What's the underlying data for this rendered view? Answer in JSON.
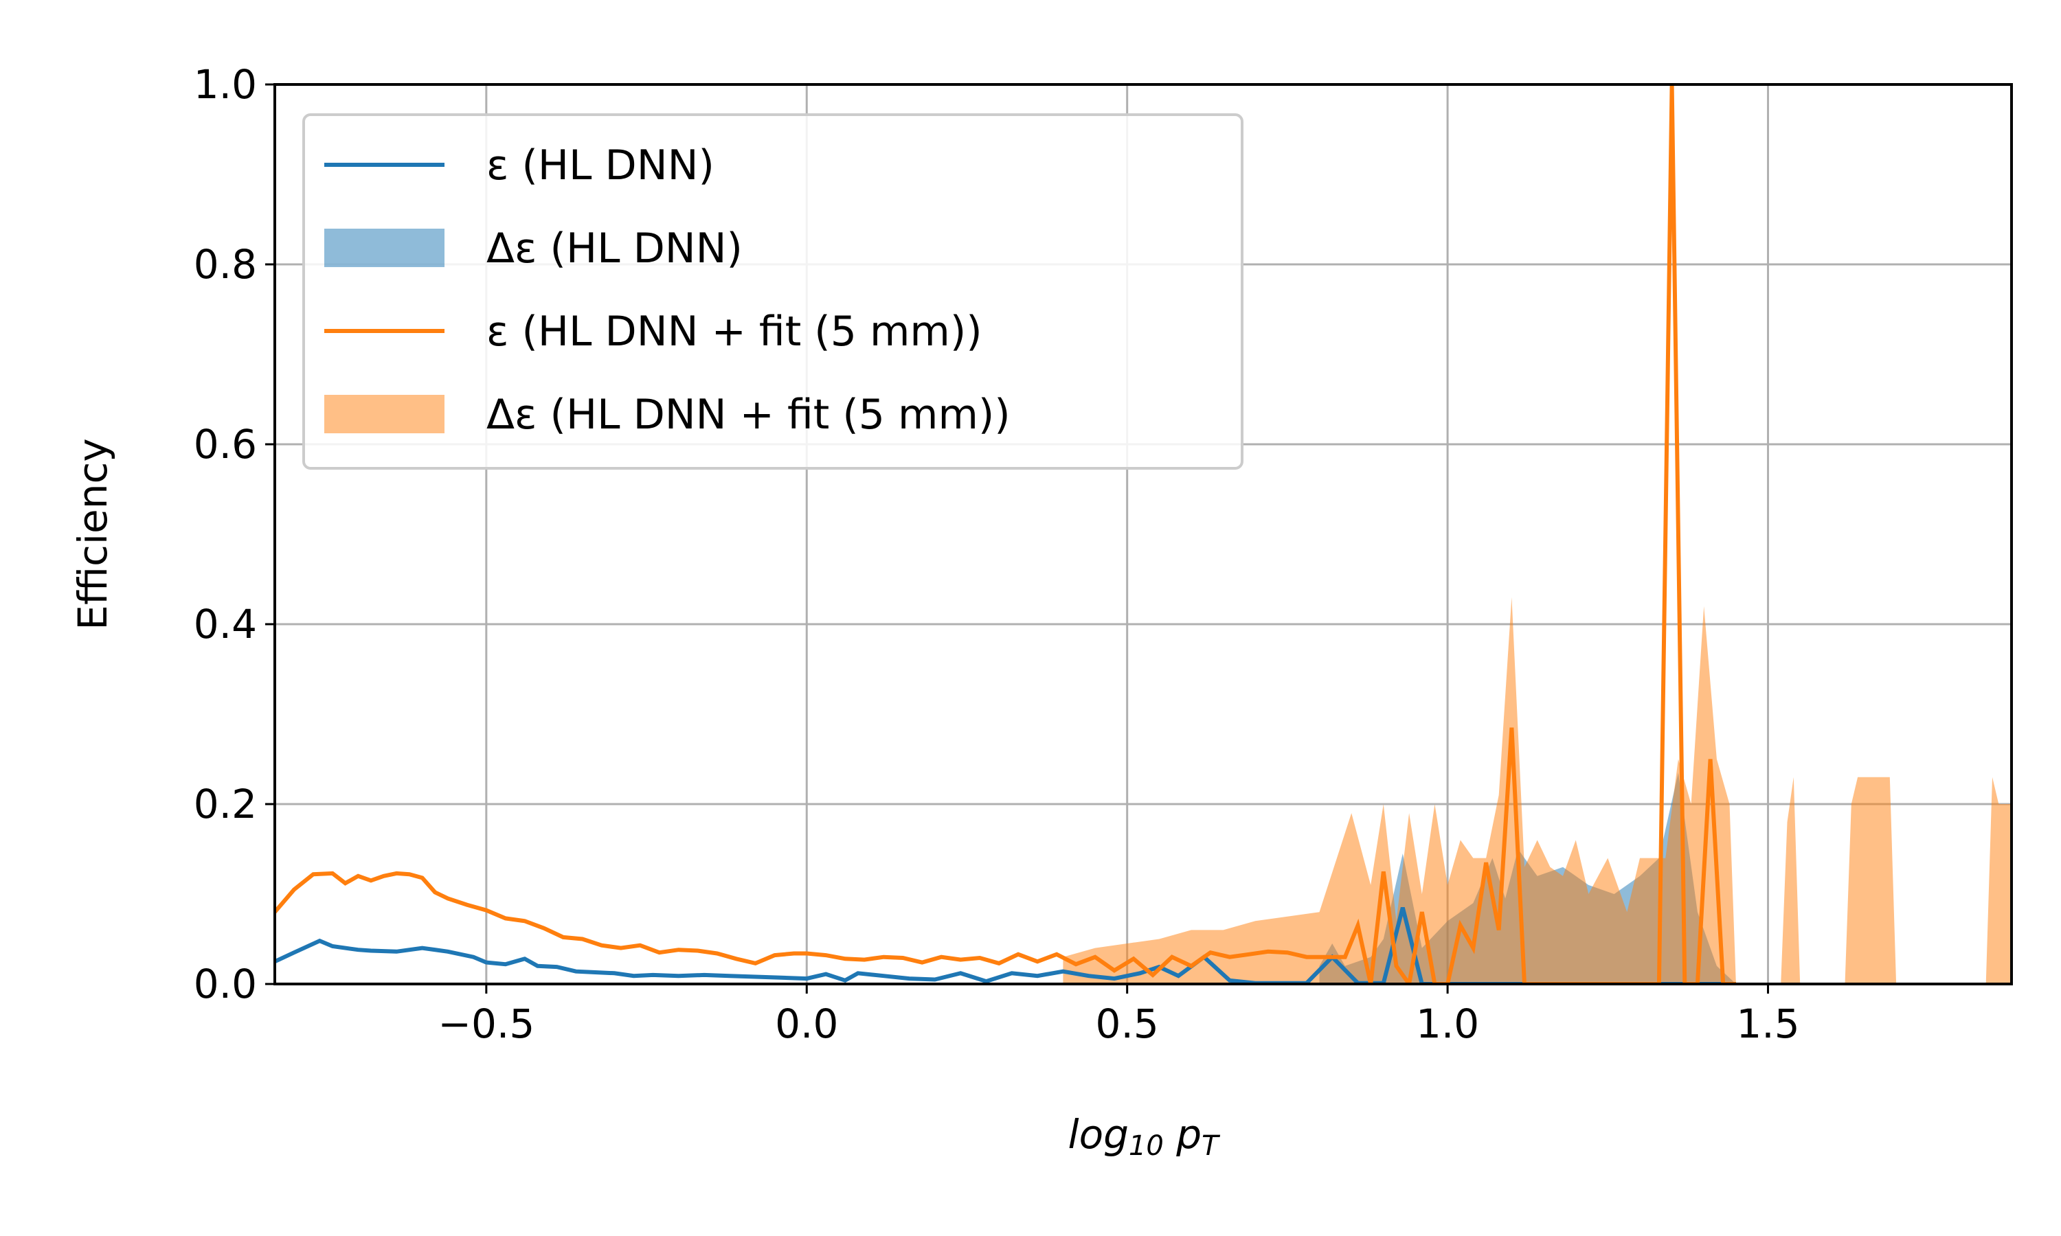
{
  "chart_data": {
    "type": "line",
    "xlabel": "log10 pT",
    "ylabel": "Efficiency",
    "xlim": [
      -0.83,
      1.88
    ],
    "ylim": [
      0,
      1
    ],
    "xticks": [
      -0.5,
      0.0,
      0.5,
      1.0,
      1.5
    ],
    "xtick_labels": [
      "−0.5",
      "0.0",
      "0.5",
      "1.0",
      "1.5"
    ],
    "yticks": [
      0.0,
      0.2,
      0.4,
      0.6,
      0.8,
      1.0
    ],
    "ytick_labels": [
      "0.0",
      "0.2",
      "0.4",
      "0.6",
      "0.8",
      "1.0"
    ],
    "grid": true,
    "legend_position": "upper-left",
    "legend": [
      {
        "label": "ε (HL DNN)",
        "kind": "line",
        "color": "#1f77b4"
      },
      {
        "label": "Δε (HL DNN)",
        "kind": "band",
        "color": "#1f77b4"
      },
      {
        "label": "ε (HL DNN + fit (5 mm))",
        "kind": "line",
        "color": "#ff7f0e"
      },
      {
        "label": "Δε (HL DNN + fit (5 mm))",
        "kind": "band",
        "color": "#ff7f0e"
      }
    ],
    "series": [
      {
        "name": "ε (HL DNN)",
        "kind": "line",
        "color": "#1f77b4",
        "x": [
          -0.83,
          -0.8,
          -0.76,
          -0.74,
          -0.7,
          -0.68,
          -0.64,
          -0.6,
          -0.56,
          -0.52,
          -0.5,
          -0.47,
          -0.44,
          -0.42,
          -0.39,
          -0.36,
          -0.33,
          -0.3,
          -0.27,
          -0.24,
          -0.2,
          -0.16,
          -0.12,
          -0.08,
          -0.04,
          0.0,
          0.03,
          0.06,
          0.08,
          0.12,
          0.16,
          0.2,
          0.24,
          0.28,
          0.32,
          0.36,
          0.4,
          0.44,
          0.48,
          0.52,
          0.55,
          0.58,
          0.62,
          0.66,
          0.7,
          0.74,
          0.78,
          0.82,
          0.86,
          0.9,
          0.93,
          0.96,
          1.0,
          1.05,
          1.1,
          1.15,
          1.2,
          1.3,
          1.34,
          1.36,
          1.4,
          1.45
        ],
        "y": [
          0.025,
          0.035,
          0.048,
          0.042,
          0.038,
          0.037,
          0.036,
          0.04,
          0.036,
          0.03,
          0.024,
          0.022,
          0.028,
          0.02,
          0.019,
          0.014,
          0.013,
          0.012,
          0.009,
          0.01,
          0.009,
          0.01,
          0.009,
          0.008,
          0.007,
          0.006,
          0.011,
          0.004,
          0.012,
          0.009,
          0.006,
          0.005,
          0.012,
          0.003,
          0.012,
          0.009,
          0.014,
          0.009,
          0.006,
          0.012,
          0.019,
          0.009,
          0.03,
          0.004,
          0.001,
          0.001,
          0.001,
          0.03,
          0.001,
          0.001,
          0.085,
          0.0,
          0.0,
          0.0,
          0.0,
          0.0,
          0.0,
          0.0,
          0.0,
          0.0,
          0.0,
          0.0
        ]
      },
      {
        "name": "Δε (HL DNN)",
        "kind": "band",
        "color": "#1f77b4",
        "x": [
          0.8,
          0.82,
          0.84,
          0.88,
          0.9,
          0.93,
          0.96,
          1.0,
          1.04,
          1.07,
          1.09,
          1.11,
          1.14,
          1.18,
          1.22,
          1.26,
          1.3,
          1.33,
          1.36,
          1.39,
          1.42,
          1.45
        ],
        "lower": [
          0,
          0,
          0,
          0,
          0,
          0,
          0,
          0,
          0,
          0,
          0,
          0,
          0,
          0,
          0,
          0,
          0,
          0,
          0,
          0,
          0,
          0
        ],
        "upper": [
          0.02,
          0.045,
          0.02,
          0.03,
          0.05,
          0.145,
          0.04,
          0.07,
          0.09,
          0.14,
          0.095,
          0.15,
          0.12,
          0.13,
          0.11,
          0.1,
          0.12,
          0.14,
          0.235,
          0.08,
          0.02,
          0.0
        ]
      },
      {
        "name": "ε (HL DNN + fit (5 mm))",
        "kind": "line",
        "color": "#ff7f0e",
        "x": [
          -0.83,
          -0.8,
          -0.77,
          -0.74,
          -0.72,
          -0.7,
          -0.68,
          -0.66,
          -0.64,
          -0.62,
          -0.6,
          -0.58,
          -0.56,
          -0.53,
          -0.5,
          -0.47,
          -0.44,
          -0.41,
          -0.38,
          -0.35,
          -0.32,
          -0.29,
          -0.26,
          -0.23,
          -0.2,
          -0.17,
          -0.14,
          -0.11,
          -0.08,
          -0.05,
          -0.02,
          0.0,
          0.03,
          0.06,
          0.09,
          0.12,
          0.15,
          0.18,
          0.21,
          0.24,
          0.27,
          0.3,
          0.33,
          0.36,
          0.39,
          0.42,
          0.45,
          0.48,
          0.51,
          0.54,
          0.57,
          0.6,
          0.63,
          0.66,
          0.69,
          0.72,
          0.75,
          0.78,
          0.81,
          0.84,
          0.86,
          0.88,
          0.9,
          0.92,
          0.94,
          0.96,
          0.98,
          1.0,
          1.02,
          1.04,
          1.06,
          1.08,
          1.1,
          1.12,
          1.14,
          1.2,
          1.25,
          1.3,
          1.33,
          1.35,
          1.37,
          1.39,
          1.41,
          1.43,
          1.45
        ],
        "y": [
          0.08,
          0.105,
          0.122,
          0.123,
          0.112,
          0.12,
          0.115,
          0.12,
          0.123,
          0.122,
          0.118,
          0.102,
          0.095,
          0.088,
          0.082,
          0.073,
          0.07,
          0.062,
          0.052,
          0.05,
          0.043,
          0.04,
          0.043,
          0.035,
          0.038,
          0.037,
          0.034,
          0.028,
          0.023,
          0.032,
          0.034,
          0.034,
          0.032,
          0.028,
          0.027,
          0.03,
          0.029,
          0.024,
          0.03,
          0.027,
          0.029,
          0.023,
          0.033,
          0.025,
          0.033,
          0.022,
          0.03,
          0.015,
          0.028,
          0.01,
          0.03,
          0.02,
          0.035,
          0.03,
          0.033,
          0.036,
          0.035,
          0.03,
          0.03,
          0.03,
          0.065,
          0.0,
          0.125,
          0.02,
          0.0,
          0.08,
          0.0,
          0.0,
          0.065,
          0.04,
          0.135,
          0.06,
          0.285,
          0.0,
          0.0,
          0.0,
          0.0,
          0.0,
          0.0,
          1.0,
          0.0,
          0.0,
          0.25,
          0.0,
          0.0
        ]
      },
      {
        "name": "Δε (HL DNN + fit (5 mm))",
        "kind": "band",
        "color": "#ff7f0e",
        "x": [
          0.4,
          0.45,
          0.5,
          0.55,
          0.6,
          0.65,
          0.7,
          0.75,
          0.8,
          0.85,
          0.88,
          0.9,
          0.92,
          0.94,
          0.96,
          0.98,
          1.0,
          1.02,
          1.04,
          1.06,
          1.08,
          1.1,
          1.12,
          1.14,
          1.16,
          1.18,
          1.2,
          1.22,
          1.25,
          1.28,
          1.3,
          1.32,
          1.34,
          1.36,
          1.38,
          1.4,
          1.42,
          1.44,
          1.45,
          1.46,
          1.52,
          1.53,
          1.54,
          1.55,
          1.56,
          1.62,
          1.63,
          1.64,
          1.66,
          1.69,
          1.7,
          1.84,
          1.85,
          1.86,
          1.88
        ],
        "lower": [
          0,
          0,
          0,
          0,
          0,
          0,
          0,
          0,
          0,
          0,
          0,
          0,
          0,
          0,
          0,
          0,
          0,
          0,
          0,
          0,
          0,
          0,
          0,
          0,
          0,
          0,
          0,
          0,
          0,
          0,
          0,
          0,
          0,
          0,
          0,
          0,
          0,
          0,
          0,
          0,
          0,
          0,
          0,
          0,
          0,
          0,
          0,
          0,
          0,
          0,
          0,
          0,
          0,
          0,
          0
        ],
        "upper": [
          0.03,
          0.04,
          0.045,
          0.05,
          0.06,
          0.06,
          0.07,
          0.075,
          0.08,
          0.19,
          0.11,
          0.2,
          0.07,
          0.19,
          0.1,
          0.2,
          0.11,
          0.16,
          0.14,
          0.14,
          0.21,
          0.43,
          0.13,
          0.16,
          0.13,
          0.12,
          0.16,
          0.1,
          0.14,
          0.08,
          0.14,
          0.14,
          0.14,
          0.25,
          0.2,
          0.42,
          0.25,
          0.2,
          0.0,
          0.0,
          0.0,
          0.18,
          0.23,
          0.0,
          0.0,
          0.0,
          0.2,
          0.23,
          0.23,
          0.23,
          0.0,
          0.0,
          0.23,
          0.2,
          0.2
        ]
      }
    ]
  }
}
